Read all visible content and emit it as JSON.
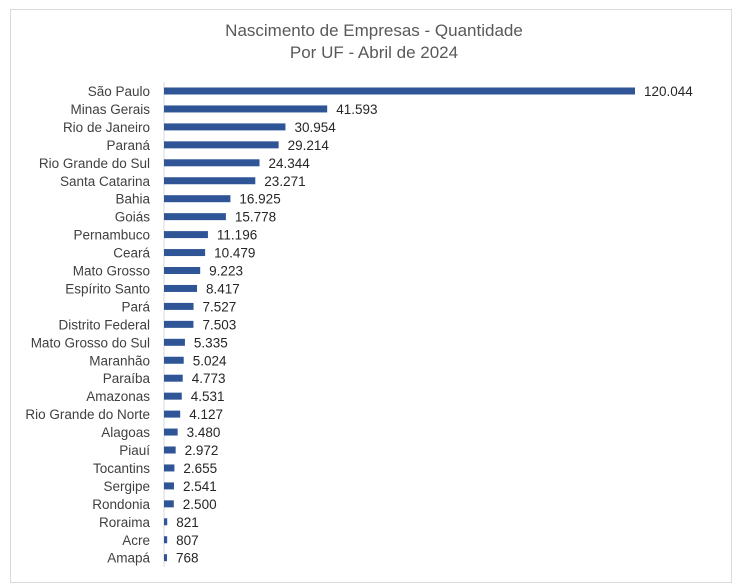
{
  "chart_data": {
    "type": "bar",
    "orientation": "horizontal",
    "title": "Nascimento de Empresas - Quantidade",
    "subtitle": "Por UF - Abril de 2024",
    "categories": [
      "São Paulo",
      "Minas Gerais",
      "Rio de Janeiro",
      "Paraná",
      "Rio Grande do Sul",
      "Santa Catarina",
      "Bahia",
      "Goiás",
      "Pernambuco",
      "Ceará",
      "Mato Grosso",
      "Espírito Santo",
      "Pará",
      "Distrito Federal",
      "Mato Grosso do Sul",
      "Maranhão",
      "Paraíba",
      "Amazonas",
      "Rio Grande do Norte",
      "Alagoas",
      "Piauí",
      "Tocantins",
      "Sergipe",
      "Rondonia",
      "Roraima",
      "Acre",
      "Amapá"
    ],
    "values": [
      120044,
      41593,
      30954,
      29214,
      24344,
      23271,
      16925,
      15778,
      11196,
      10479,
      9223,
      8417,
      7527,
      7503,
      5335,
      5024,
      4773,
      4531,
      4127,
      3480,
      2972,
      2655,
      2541,
      2500,
      821,
      807,
      768
    ],
    "value_labels": [
      "120.044",
      "41.593",
      "30.954",
      "29.214",
      "24.344",
      "23.271",
      "16.925",
      "15.778",
      "11.196",
      "10.479",
      "9.223",
      "8.417",
      "7.527",
      "7.503",
      "5.335",
      "5.024",
      "4.773",
      "4.531",
      "4.127",
      "3.480",
      "2.972",
      "2.655",
      "2.541",
      "2.500",
      "821",
      "807",
      "768"
    ],
    "xlim": [
      0,
      120044
    ],
    "grid": false,
    "legend": "none",
    "bar_color": "#2f5597"
  }
}
